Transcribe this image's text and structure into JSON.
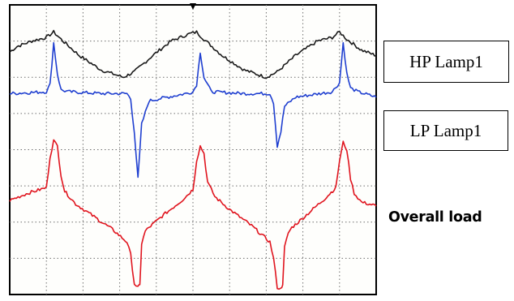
{
  "chart_data": {
    "type": "line",
    "title": "",
    "xlabel": "",
    "ylabel": "",
    "grid": true,
    "grid_divisions": {
      "x": 10,
      "y": 8
    },
    "x_range": [
      0,
      10
    ],
    "y_range": [
      0,
      8
    ],
    "trigger_marker_x": 5,
    "series": [
      {
        "name": "HP Lamp1",
        "color": "#1a1a1a",
        "x": [
          0,
          0.2,
          0.6,
          1.0,
          1.2,
          1.4,
          1.9,
          2.5,
          3.1,
          3.4,
          3.9,
          4.4,
          4.9,
          5.1,
          5.3,
          5.8,
          6.4,
          7.0,
          7.3,
          7.8,
          8.4,
          8.8,
          9.0,
          9.2,
          9.6,
          10.0
        ],
        "y": [
          6.7,
          6.85,
          7.0,
          7.1,
          7.25,
          7.05,
          6.6,
          6.2,
          6.0,
          6.15,
          6.6,
          7.0,
          7.2,
          7.25,
          7.05,
          6.6,
          6.2,
          6.0,
          6.15,
          6.6,
          7.0,
          7.1,
          7.25,
          7.05,
          6.75,
          6.6
        ]
      },
      {
        "name": "LP Lamp1",
        "color": "#1f3fd0",
        "x": [
          0,
          1.0,
          1.1,
          1.2,
          1.3,
          1.4,
          1.6,
          2.5,
          3.2,
          3.3,
          3.4,
          3.5,
          3.6,
          3.8,
          4.8,
          5.0,
          5.1,
          5.2,
          5.3,
          5.5,
          6.4,
          7.1,
          7.2,
          7.3,
          7.4,
          7.5,
          7.8,
          8.8,
          9.0,
          9.1,
          9.2,
          9.3,
          9.5,
          10.0
        ],
        "y": [
          5.55,
          5.6,
          5.8,
          6.95,
          6.1,
          5.65,
          5.6,
          5.55,
          5.55,
          5.4,
          4.5,
          3.2,
          4.7,
          5.35,
          5.55,
          5.6,
          5.8,
          6.7,
          6.0,
          5.6,
          5.55,
          5.55,
          5.3,
          4.1,
          4.5,
          5.2,
          5.45,
          5.6,
          5.85,
          6.95,
          6.1,
          5.7,
          5.6,
          5.45
        ]
      },
      {
        "name": "Overall load",
        "color": "#e0141e",
        "x": [
          0,
          0.5,
          1.0,
          1.1,
          1.2,
          1.3,
          1.4,
          1.5,
          1.8,
          2.3,
          2.8,
          3.2,
          3.3,
          3.4,
          3.5,
          3.55,
          3.6,
          3.7,
          3.8,
          4.2,
          4.7,
          5.0,
          5.1,
          5.2,
          5.3,
          5.4,
          5.6,
          6.0,
          6.6,
          7.1,
          7.2,
          7.3,
          7.4,
          7.45,
          7.5,
          7.6,
          7.7,
          8.1,
          8.6,
          8.9,
          9.0,
          9.1,
          9.2,
          9.3,
          9.4,
          9.6,
          10.0
        ],
        "y": [
          2.6,
          2.8,
          2.95,
          3.8,
          4.25,
          4.1,
          3.3,
          2.85,
          2.5,
          2.15,
          1.8,
          1.45,
          1.1,
          0.3,
          0.2,
          0.25,
          1.4,
          1.75,
          1.85,
          2.2,
          2.6,
          2.9,
          3.7,
          4.1,
          3.9,
          3.1,
          2.7,
          2.35,
          1.9,
          1.45,
          1.0,
          0.2,
          0.15,
          0.3,
          1.3,
          1.7,
          1.85,
          2.2,
          2.65,
          2.95,
          3.7,
          4.2,
          4.0,
          3.2,
          2.8,
          2.55,
          2.45
        ]
      }
    ]
  },
  "labels": {
    "hp": "HP Lamp1",
    "lp": "LP Lamp1",
    "load": "Overall load"
  }
}
